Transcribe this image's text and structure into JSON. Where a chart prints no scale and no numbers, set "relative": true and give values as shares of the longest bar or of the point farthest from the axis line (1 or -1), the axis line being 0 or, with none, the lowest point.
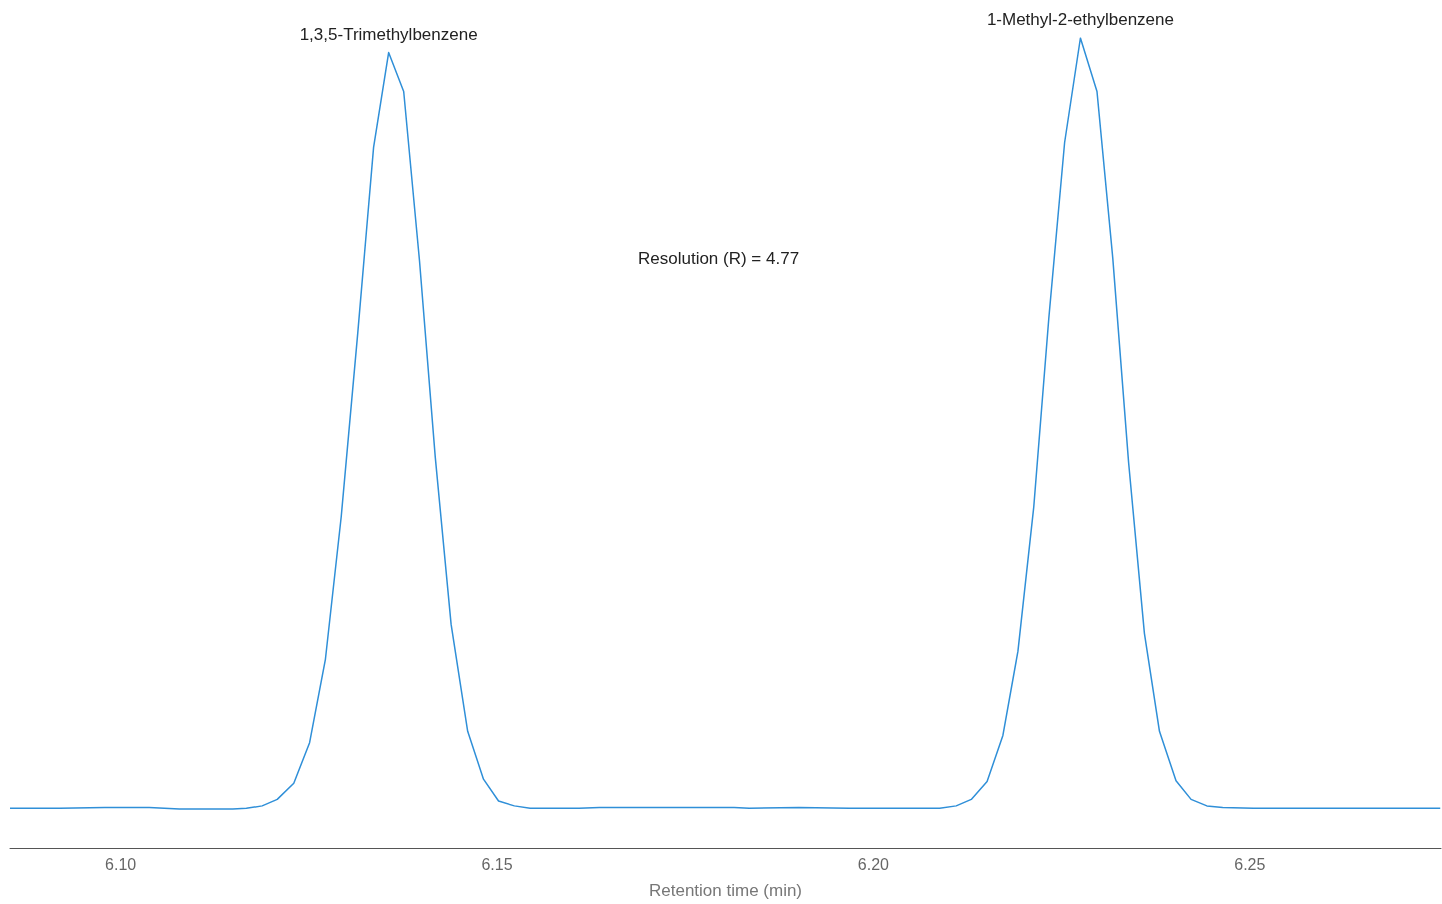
{
  "chart_data": {
    "type": "line",
    "relative": true,
    "xlabel": "Retention time (min)",
    "xlim": [
      6.0853,
      6.2754
    ],
    "xticks": [
      {
        "value": 6.1,
        "label": "6.10"
      },
      {
        "value": 6.15,
        "label": "6.15"
      },
      {
        "value": 6.2,
        "label": "6.20"
      },
      {
        "value": 6.25,
        "label": "6.25"
      }
    ],
    "x": [
      6.0853,
      6.0919,
      6.0979,
      6.1038,
      6.1078,
      6.1149,
      6.1167,
      6.1188,
      6.1208,
      6.123,
      6.1251,
      6.1272,
      6.1293,
      6.1315,
      6.1336,
      6.1356,
      6.1376,
      6.1397,
      6.1418,
      6.1439,
      6.1461,
      6.1482,
      6.1502,
      6.1523,
      6.1544,
      6.1609,
      6.1636,
      6.1815,
      6.1835,
      6.1901,
      6.1968,
      6.2067,
      6.2088,
      6.211,
      6.213,
      6.2151,
      6.2172,
      6.2192,
      6.2213,
      6.2233,
      6.2254,
      6.2275,
      6.2297,
      6.2318,
      6.2339,
      6.236,
      6.238,
      6.2402,
      6.2422,
      6.2443,
      6.2464,
      6.2505,
      6.2753
    ],
    "series": [
      {
        "color": "#2f8fd8",
        "values": [
          0.049,
          0.049,
          0.05,
          0.05,
          0.048,
          0.048,
          0.049,
          0.052,
          0.06,
          0.08,
          0.13,
          0.233,
          0.409,
          0.636,
          0.865,
          0.982,
          0.934,
          0.725,
          0.482,
          0.276,
          0.144,
          0.085,
          0.058,
          0.052,
          0.049,
          0.049,
          0.05,
          0.05,
          0.049,
          0.05,
          0.049,
          0.049,
          0.049,
          0.052,
          0.06,
          0.082,
          0.139,
          0.243,
          0.421,
          0.654,
          0.871,
          1,
          0.934,
          0.728,
          0.476,
          0.265,
          0.144,
          0.083,
          0.06,
          0.052,
          0.05,
          0.049,
          0.049
        ]
      }
    ],
    "annotations": [
      {
        "text": "1,3,5-Trimethylbenzene",
        "x": 6.1356,
        "y": 0.982
      },
      {
        "text": "1-Methyl-2-ethylbenzene",
        "x": 6.2275,
        "y": 1
      },
      "Resolution (R) = 4.77"
    ],
    "grid": false,
    "marker": "none",
    "line_style": "solid",
    "tick_labels": "x"
  }
}
